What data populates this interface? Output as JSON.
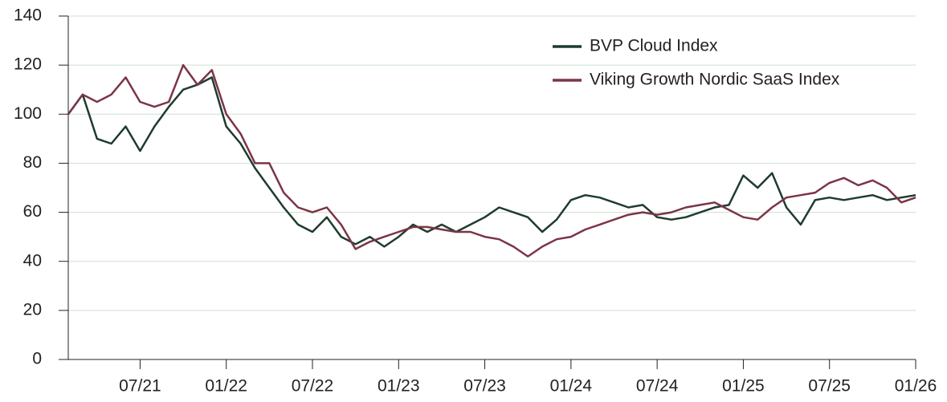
{
  "chart_data": {
    "type": "line",
    "x": [
      "2021-02",
      "2021-03",
      "2021-04",
      "2021-05",
      "2021-06",
      "2021-07",
      "2021-08",
      "2021-09",
      "2021-10",
      "2021-11",
      "2021-12",
      "2022-01",
      "2022-02",
      "2022-03",
      "2022-04",
      "2022-05",
      "2022-06",
      "2022-07",
      "2022-08",
      "2022-09",
      "2022-10",
      "2022-11",
      "2022-12",
      "2023-01",
      "2023-02",
      "2023-03",
      "2023-04",
      "2023-05",
      "2023-06",
      "2023-07",
      "2023-08",
      "2023-09",
      "2023-10",
      "2023-11",
      "2023-12",
      "2024-01",
      "2024-02",
      "2024-03",
      "2024-04",
      "2024-05",
      "2024-06",
      "2024-07",
      "2024-08",
      "2024-09",
      "2024-10",
      "2024-11",
      "2024-12",
      "2025-01",
      "2025-02",
      "2025-03",
      "2025-04",
      "2025-05",
      "2025-06",
      "2025-07",
      "2025-08",
      "2025-09",
      "2025-10",
      "2025-11",
      "2025-12",
      "2026-01"
    ],
    "series": [
      {
        "name": "BVP Cloud Index",
        "color": "#1f3b2f",
        "values": [
          100,
          108,
          90,
          88,
          95,
          85,
          95,
          103,
          110,
          112,
          115,
          95,
          88,
          78,
          70,
          62,
          55,
          52,
          58,
          50,
          47,
          50,
          46,
          50,
          55,
          52,
          55,
          52,
          55,
          58,
          62,
          60,
          58,
          52,
          57,
          65,
          67,
          66,
          64,
          62,
          63,
          58,
          57,
          58,
          60,
          62,
          63,
          75,
          70,
          76,
          62,
          55,
          65,
          66,
          65,
          66,
          67,
          65,
          66,
          67
        ]
      },
      {
        "name": "Viking Growth Nordic SaaS Index",
        "color": "#7b3546",
        "values": [
          100,
          108,
          105,
          108,
          115,
          105,
          103,
          105,
          120,
          112,
          118,
          100,
          92,
          80,
          80,
          68,
          62,
          60,
          62,
          55,
          45,
          48,
          50,
          52,
          54,
          54,
          53,
          52,
          52,
          50,
          49,
          46,
          42,
          46,
          49,
          50,
          53,
          55,
          57,
          59,
          60,
          59,
          60,
          62,
          63,
          64,
          61,
          58,
          57,
          62,
          66,
          67,
          68,
          72,
          74,
          71,
          73,
          70,
          64,
          66
        ]
      }
    ],
    "xlim": [
      "2021-02",
      "2026-01"
    ],
    "xticks": [
      {
        "value": "2021-07",
        "label": "07/21"
      },
      {
        "value": "2022-01",
        "label": "01/22"
      },
      {
        "value": "2022-07",
        "label": "07/22"
      },
      {
        "value": "2023-01",
        "label": "01/23"
      },
      {
        "value": "2023-07",
        "label": "07/23"
      },
      {
        "value": "2024-01",
        "label": "01/24"
      },
      {
        "value": "2024-07",
        "label": "07/24"
      },
      {
        "value": "2025-01",
        "label": "01/25"
      },
      {
        "value": "2025-07",
        "label": "07/25"
      },
      {
        "value": "2026-01",
        "label": "01/26"
      }
    ],
    "ylim": [
      0,
      140
    ],
    "yticks": [
      0,
      20,
      40,
      60,
      80,
      100,
      120,
      140
    ],
    "grid": true,
    "legend": "upper right"
  }
}
